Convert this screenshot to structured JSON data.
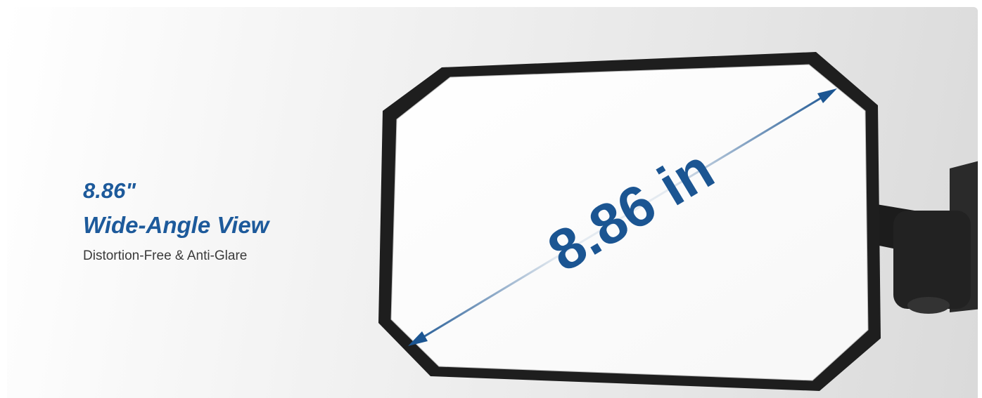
{
  "headline": {
    "line1": "8.86\"",
    "line2": "Wide-Angle View"
  },
  "subtitle": "Distortion-Free & Anti-Glare",
  "mirror_label": "8.86 in"
}
